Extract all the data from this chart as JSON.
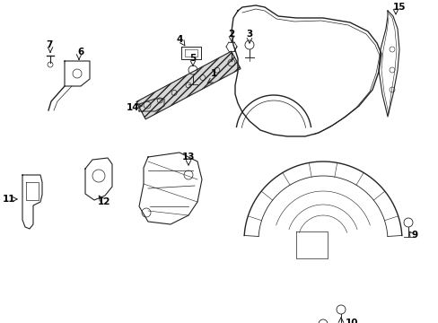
{
  "background_color": "#ffffff",
  "line_color": "#222222",
  "figsize": [
    4.89,
    3.6
  ],
  "dpi": 100,
  "label_fontsize": 7.0
}
